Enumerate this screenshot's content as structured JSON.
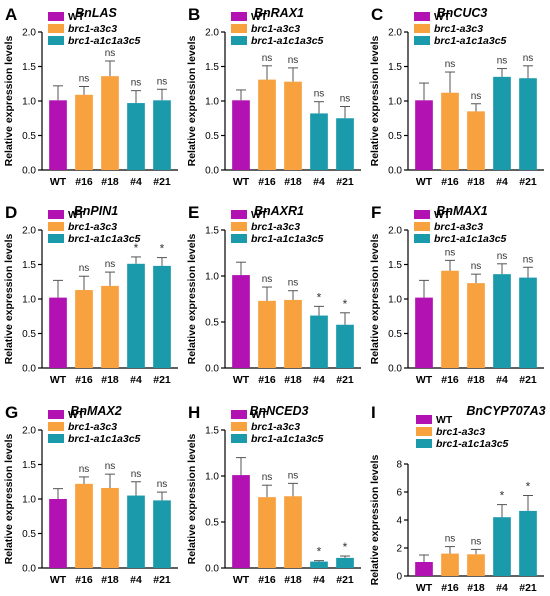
{
  "colors": {
    "WT": "#b112b1",
    "a3c3": "#f7a23f",
    "a1c1": "#1a9aab"
  },
  "legend": [
    "WT",
    "brc1-a3c3",
    "brc1-a1c1a3c5"
  ],
  "ylabel": "Relative expression levels",
  "chart_data": [
    {
      "type": "bar",
      "panel": "A",
      "title": "BnLAS",
      "ylim": [
        0,
        2.0
      ],
      "yticks": [
        "0.0",
        "0.5",
        "1.0",
        "1.5",
        "2.0"
      ],
      "categories": [
        "WT",
        "#16",
        "#18",
        "#4",
        "#21"
      ],
      "values": [
        1.01,
        1.09,
        1.36,
        0.97,
        1.01
      ],
      "errors": [
        0.21,
        0.12,
        0.22,
        0.18,
        0.16
      ],
      "annotations": [
        "",
        "ns",
        "ns",
        "ns",
        "ns"
      ]
    },
    {
      "type": "bar",
      "panel": "B",
      "title": "BnRAX1",
      "ylim": [
        0,
        2.0
      ],
      "yticks": [
        "0.0",
        "0.5",
        "1.0",
        "1.5",
        "2.0"
      ],
      "categories": [
        "WT",
        "#16",
        "#18",
        "#4",
        "#21"
      ],
      "values": [
        1.01,
        1.31,
        1.28,
        0.82,
        0.75
      ],
      "errors": [
        0.15,
        0.2,
        0.2,
        0.17,
        0.17
      ],
      "annotations": [
        "",
        "ns",
        "ns",
        "ns",
        "ns"
      ]
    },
    {
      "type": "bar",
      "panel": "C",
      "title": "BnCUC3",
      "ylim": [
        0,
        2.0
      ],
      "yticks": [
        "0.0",
        "0.5",
        "1.0",
        "1.5",
        "2.0"
      ],
      "categories": [
        "WT",
        "#16",
        "#18",
        "#4",
        "#21"
      ],
      "values": [
        1.01,
        1.12,
        0.85,
        1.35,
        1.33
      ],
      "errors": [
        0.25,
        0.3,
        0.11,
        0.12,
        0.18
      ],
      "annotations": [
        "",
        "ns",
        "ns",
        "ns",
        "ns"
      ]
    },
    {
      "type": "bar",
      "panel": "D",
      "title": "BnPIN1",
      "ylim": [
        0,
        2.0
      ],
      "yticks": [
        "0.0",
        "0.5",
        "1.0",
        "1.5",
        "2.0"
      ],
      "categories": [
        "WT",
        "#16",
        "#18",
        "#4",
        "#21"
      ],
      "values": [
        1.02,
        1.13,
        1.19,
        1.51,
        1.48
      ],
      "errors": [
        0.25,
        0.2,
        0.2,
        0.1,
        0.12
      ],
      "annotations": [
        "",
        "ns",
        "ns",
        "*",
        "*"
      ]
    },
    {
      "type": "bar",
      "panel": "E",
      "title": "BnAXR1",
      "ylim": [
        0,
        1.5
      ],
      "yticks": [
        "0.0",
        "0.5",
        "1.0",
        "1.5"
      ],
      "categories": [
        "WT",
        "#16",
        "#18",
        "#4",
        "#21"
      ],
      "values": [
        1.01,
        0.73,
        0.74,
        0.57,
        0.47
      ],
      "errors": [
        0.14,
        0.15,
        0.1,
        0.1,
        0.13
      ],
      "annotations": [
        "",
        "ns",
        "ns",
        "*",
        "*"
      ]
    },
    {
      "type": "bar",
      "panel": "F",
      "title": "BnMAX1",
      "ylim": [
        0,
        2.0
      ],
      "yticks": [
        "0.0",
        "0.5",
        "1.0",
        "1.5",
        "2.0"
      ],
      "categories": [
        "WT",
        "#16",
        "#18",
        "#4",
        "#21"
      ],
      "values": [
        1.02,
        1.41,
        1.23,
        1.36,
        1.31
      ],
      "errors": [
        0.25,
        0.15,
        0.13,
        0.15,
        0.15
      ],
      "annotations": [
        "",
        "ns",
        "ns",
        "ns",
        "ns"
      ]
    },
    {
      "type": "bar",
      "panel": "G",
      "title": "BnMAX2",
      "ylim": [
        0,
        2.0
      ],
      "yticks": [
        "0.0",
        "0.5",
        "1.0",
        "1.5",
        "2.0"
      ],
      "categories": [
        "WT",
        "#16",
        "#18",
        "#4",
        "#21"
      ],
      "values": [
        1.0,
        1.22,
        1.16,
        1.05,
        0.98
      ],
      "errors": [
        0.15,
        0.1,
        0.2,
        0.2,
        0.12
      ],
      "annotations": [
        "",
        "ns",
        "ns",
        "ns",
        "ns"
      ]
    },
    {
      "type": "bar",
      "panel": "H",
      "title": "BnNCED3",
      "ylim": [
        0,
        1.5
      ],
      "yticks": [
        "0.0",
        "0.5",
        "1.0",
        "1.5"
      ],
      "categories": [
        "WT",
        "#16",
        "#18",
        "#4",
        "#21"
      ],
      "values": [
        1.01,
        0.77,
        0.78,
        0.07,
        0.11
      ],
      "errors": [
        0.19,
        0.13,
        0.14,
        0.01,
        0.02
      ],
      "annotations": [
        "",
        "ns",
        "ns",
        "*",
        "*"
      ]
    },
    {
      "type": "bar",
      "panel": "I",
      "title": "BnCYP707A3",
      "ylim": [
        0,
        8
      ],
      "yticks": [
        "0",
        "2",
        "4",
        "6",
        "8"
      ],
      "categories": [
        "WT",
        "#16",
        "#18",
        "#4",
        "#21"
      ],
      "values": [
        1.0,
        1.6,
        1.55,
        4.2,
        4.65
      ],
      "errors": [
        0.5,
        0.5,
        0.35,
        0.9,
        1.1
      ],
      "annotations": [
        "",
        "ns",
        "ns",
        "*",
        "*"
      ]
    }
  ]
}
